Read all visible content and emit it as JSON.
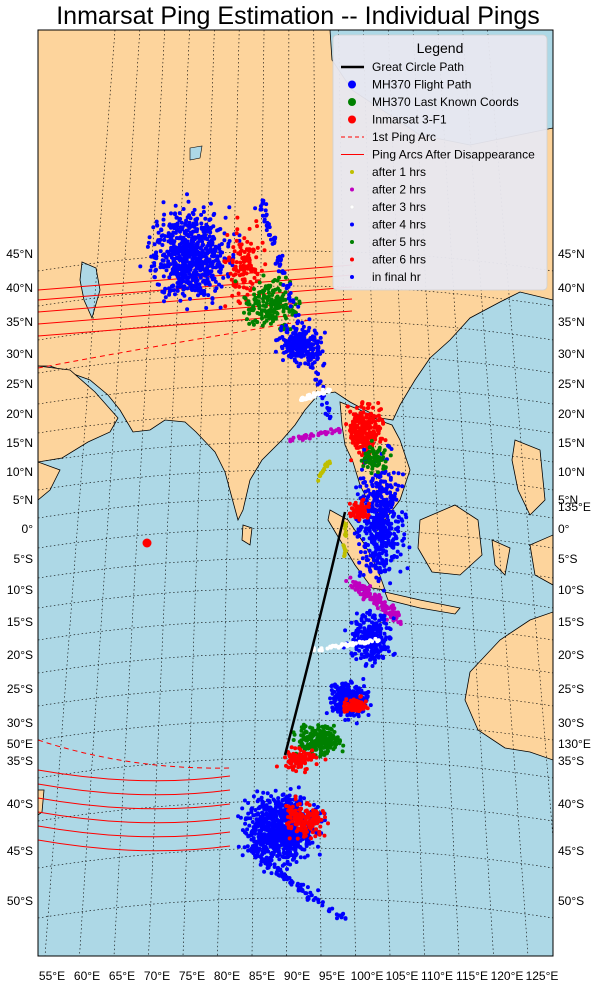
{
  "title": "Inmarsat Ping Estimation -- Individual Pings",
  "colors": {
    "ocean": "#add8e6",
    "land": "#fdd49c",
    "flight_path": "#0000ff",
    "last_known": "#008000",
    "satellite": "#ff0000",
    "great_circle": "#000000",
    "arcs": "#ff0000",
    "after_1": "#bfbf00",
    "after_2": "#bf00bf",
    "after_3": "#ffffff",
    "after_4": "#0000ff",
    "after_5": "#008000",
    "after_6": "#ff0000",
    "final": "#0000ff"
  },
  "legend": {
    "title": "Legend",
    "items": [
      {
        "label": "Great Circle Path",
        "kind": "line",
        "color": "#000000"
      },
      {
        "label": "MH370 Flight Path",
        "kind": "bigdot",
        "color": "#0000ff"
      },
      {
        "label": "MH370 Last Known Coords",
        "kind": "bigdot",
        "color": "#008000"
      },
      {
        "label": "Inmarsat 3-F1",
        "kind": "bigdot",
        "color": "#ff0000"
      },
      {
        "label": "1st Ping Arc",
        "kind": "dashed",
        "color": "#ff0000"
      },
      {
        "label": "Ping Arcs After Disappearance",
        "kind": "line-thin",
        "color": "#ff0000"
      },
      {
        "label": "after 1 hrs",
        "kind": "dot",
        "color": "#bfbf00"
      },
      {
        "label": "after 2 hrs",
        "kind": "dot",
        "color": "#bf00bf"
      },
      {
        "label": "after 3 hrs",
        "kind": "dot",
        "color": "#ffffff"
      },
      {
        "label": "after 4 hrs",
        "kind": "dot",
        "color": "#0000ff"
      },
      {
        "label": "after 5 hrs",
        "kind": "dot",
        "color": "#008000"
      },
      {
        "label": "after 6 hrs",
        "kind": "dot",
        "color": "#ff0000"
      },
      {
        "label": "in final hr",
        "kind": "dot",
        "color": "#0000ff"
      }
    ]
  },
  "lat_labels_left": [
    "45°N",
    "40°N",
    "35°N",
    "30°N",
    "25°N",
    "20°N",
    "15°N",
    "10°N",
    "5°N",
    "0°",
    "5°S",
    "10°S",
    "15°S",
    "20°S",
    "25°S",
    "30°S",
    "35°S",
    "40°S",
    "45°S",
    "50°S"
  ],
  "lat_labels_right": [
    "45°N",
    "40°N",
    "35°N",
    "30°N",
    "25°N",
    "20°N",
    "15°N",
    "10°N",
    "5°N",
    "0°",
    "5°S",
    "10°S",
    "15°S",
    "20°S",
    "25°S",
    "30°S",
    "35°S",
    "40°S",
    "45°S",
    "50°S"
  ],
  "extra_labels": {
    "left_50e": "50°E",
    "right_130e": "130°E",
    "right_135e": "135°E"
  },
  "lon_labels": [
    "55°E",
    "60°E",
    "65°E",
    "70°E",
    "75°E",
    "80°E",
    "85°E",
    "90°E",
    "95°E",
    "100°E",
    "105°E",
    "110°E",
    "115°E",
    "120°E",
    "125°E"
  ]
}
